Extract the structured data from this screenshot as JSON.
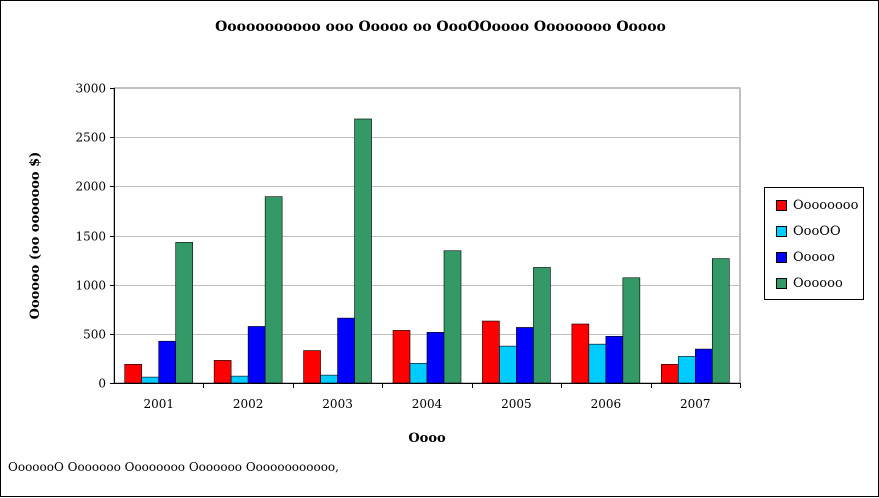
{
  "chart_data": {
    "type": "bar",
    "title": "Ooooooooooo ooo Ooooo oo OooOOoooo Oooooooo Ooooo",
    "xlabel": "Oooo",
    "ylabel": "Oooooo (oo ooooooo $)",
    "categories": [
      "2001",
      "2002",
      "2003",
      "2004",
      "2005",
      "2006",
      "2007"
    ],
    "ylim": [
      0,
      3000
    ],
    "yticks": [
      0,
      500,
      1000,
      1500,
      2000,
      2500,
      3000
    ],
    "grid": true,
    "legend_position": "right",
    "series": [
      {
        "name": "Oooooooo",
        "color": "#ff0000",
        "values": [
          190,
          230,
          330,
          535,
          630,
          600,
          190
        ]
      },
      {
        "name": "OooOO",
        "color": "#00ccff",
        "values": [
          60,
          70,
          80,
          200,
          375,
          395,
          270
        ]
      },
      {
        "name": "Ooooo",
        "color": "#0000ff",
        "values": [
          425,
          575,
          660,
          515,
          565,
          475,
          345
        ]
      },
      {
        "name": "Oooooo",
        "color": "#339966",
        "values": [
          1430,
          1895,
          2685,
          1345,
          1175,
          1070,
          1265
        ]
      }
    ]
  },
  "source_note": "OoooooO Ooooooo Oooooooo Ooooooo Oooooooooooo,"
}
